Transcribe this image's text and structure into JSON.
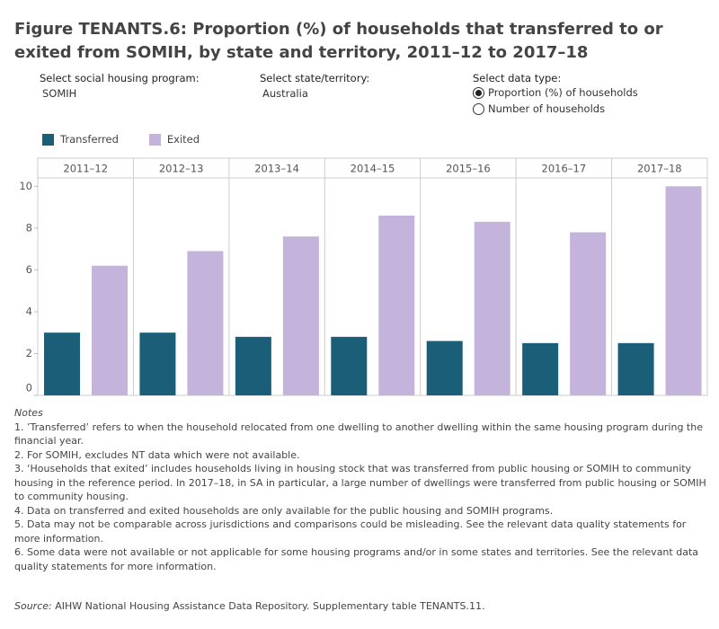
{
  "chart_data": {
    "type": "bar",
    "title": "Figure TENANTS.6: Proportion (%) of households that transferred to or exited from SOMIH, by state and territory, 2011–12 to 2017–18",
    "categories": [
      "2011–12",
      "2012–13",
      "2013–14",
      "2014–15",
      "2015–16",
      "2016–17",
      "2017–18"
    ],
    "series": [
      {
        "name": "Transferred",
        "color": "#1a5e78",
        "values": [
          3.0,
          3.0,
          2.8,
          2.8,
          2.6,
          2.5,
          2.5
        ]
      },
      {
        "name": "Exited",
        "color": "#c4b4dc",
        "values": [
          6.2,
          6.9,
          7.6,
          8.6,
          8.3,
          7.8,
          10.0
        ]
      }
    ],
    "ylim": [
      0,
      10.4
    ],
    "yticks": [
      0,
      2,
      4,
      6,
      8,
      10
    ],
    "grid": false
  },
  "controls": {
    "program": {
      "label": "Select social housing program:",
      "value": "SOMIH"
    },
    "state": {
      "label": "Select state/territory:",
      "value": "Australia"
    },
    "data_type": {
      "label": "Select data type:",
      "options": [
        "Proportion (%) of households",
        "Number of households"
      ],
      "selected": 0
    }
  },
  "notes": {
    "heading": "Notes",
    "items": [
      "1. ’Transferred’ refers to when the household relocated from one dwelling to another dwelling within the same housing program during the financial year.",
      "2. For SOMIH, excludes NT data which were not available.",
      "3. ‘Households that exited’ includes households living in housing stock that was transferred from public housing or SOMIH to community housing in the reference period. In 2017–18, in SA in particular, a large number of dwellings were transferred from public housing or SOMIH to community housing.",
      "4. Data on transferred and exited households are only available for the public housing and SOMIH programs.",
      "5. Data may not be comparable across jurisdictions and comparisons could be misleading. See the relevant data quality statements for more information.",
      "6. Some data were not available or not applicable for some housing programs and/or in some states and territories. See the relevant data quality statements for more information."
    ]
  },
  "source": {
    "label": "Source:",
    "text": " AIHW National Housing Assistance Data Repository. Supplementary table TENANTS.11."
  }
}
